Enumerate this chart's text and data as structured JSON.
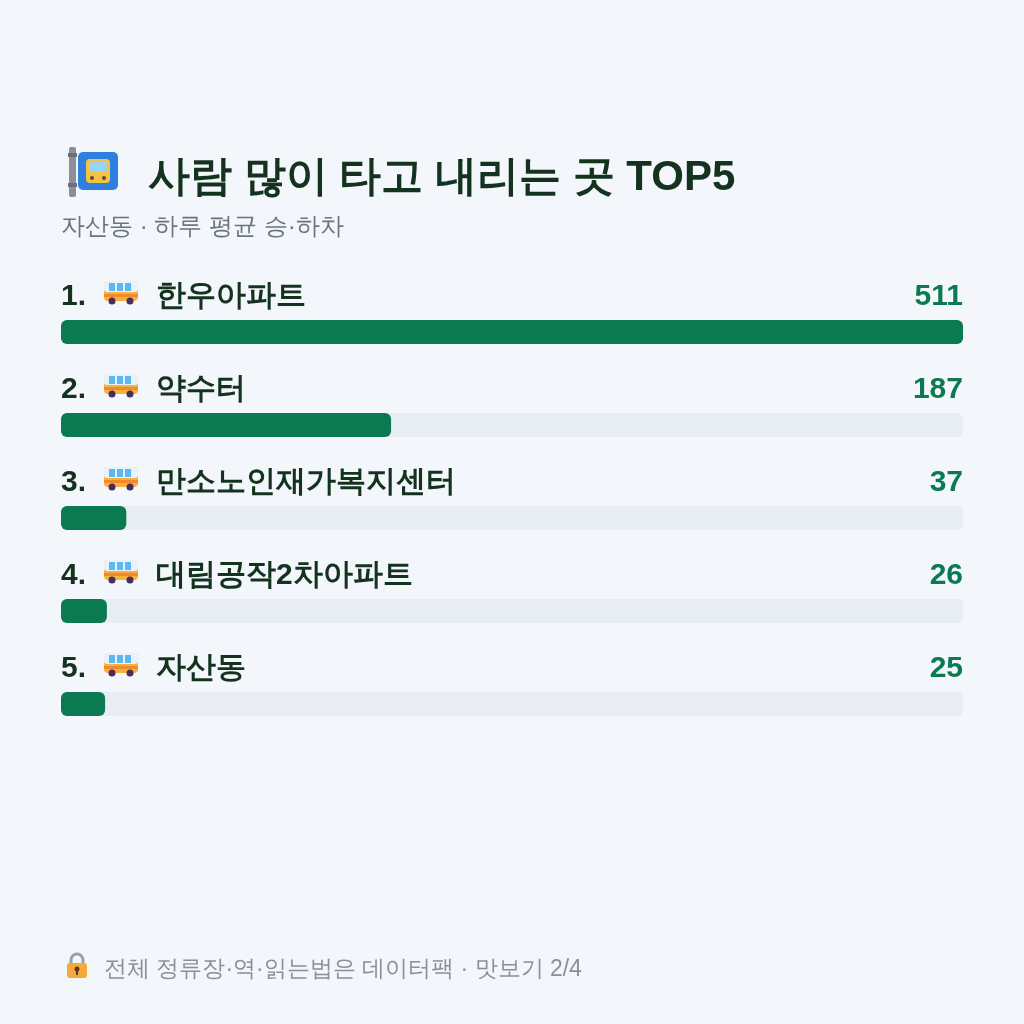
{
  "chart_data": {
    "type": "bar",
    "orientation": "horizontal",
    "title": "사람 많이 타고 내리는 곳 TOP5",
    "subtitle": "자산동 · 하루 평균 승·하차",
    "categories": [
      "1. 한우아파트",
      "2. 약수터",
      "3. 만소노인재가복지센터",
      "4. 대림공작2차아파트",
      "5. 자산동"
    ],
    "values": [
      511,
      187,
      37,
      26,
      25
    ],
    "color": "#0b7a50",
    "xlim": [
      0,
      511
    ],
    "data_labels": true,
    "annotations": [
      "전체 정류장·역·읽는법은 데이터팩 · 맛보기 2/4"
    ]
  }
}
